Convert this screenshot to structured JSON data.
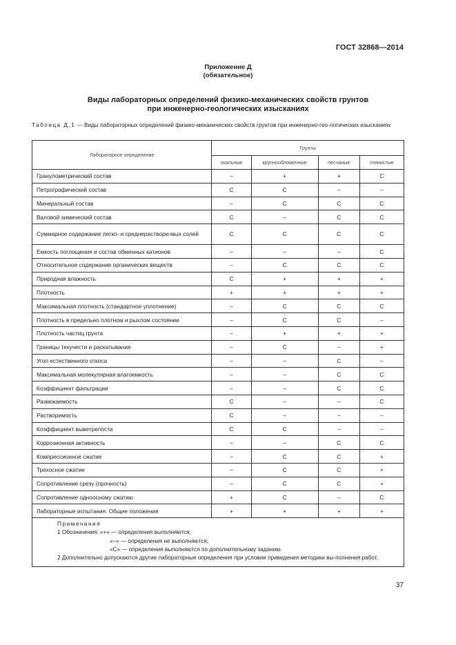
{
  "header": {
    "standard": "ГОСТ 32868—2014"
  },
  "appendix": {
    "title": "Приложение Д",
    "status": "(обязательное)"
  },
  "heading": {
    "line1": "Виды лабораторных определений физико-механических свойств грунтов",
    "line2": "при инженерно-геологических изысканиях"
  },
  "caption": {
    "label": "Таблица Д.1",
    "text": " — Виды лабораторных определений физико-механических свойств грунтов при инженерно-гео-логических изысканиях"
  },
  "table": {
    "col_label": "Лабораторное определение",
    "group_label": "Грунты",
    "columns": [
      "скальные",
      "крупнообломочные",
      "песчаные",
      "глинистые"
    ],
    "rows": [
      {
        "name": "Гранулометрический состав",
        "v": [
          "–",
          "+",
          "+",
          "С"
        ]
      },
      {
        "name": "Петрографический состав",
        "v": [
          "С",
          "С",
          "–",
          "–"
        ]
      },
      {
        "name": "Минеральный состав",
        "v": [
          "–",
          "С",
          "С",
          "С"
        ]
      },
      {
        "name": "Валовой химический состав",
        "v": [
          "С",
          "–",
          "С",
          "С"
        ]
      },
      {
        "name": "Суммарное содержание легко- и среднераствори-мых солей",
        "v": [
          "С",
          "С",
          "С",
          "С"
        ]
      },
      {
        "name": "Емкость поглощения и состав обменных катионов",
        "v": [
          "–",
          "–",
          "–",
          "С"
        ]
      },
      {
        "name": "Относительное содержание органических веществ",
        "v": [
          "–",
          "С",
          "С",
          "С"
        ]
      },
      {
        "name": "Природная влажность",
        "v": [
          "С",
          "+",
          "+",
          "+"
        ]
      },
      {
        "name": "Плотность",
        "v": [
          "+",
          "+",
          "+",
          "+"
        ]
      },
      {
        "name": "Максимальная плотность (стандартное уплотнение)",
        "v": [
          "–",
          "С",
          "С",
          "С"
        ]
      },
      {
        "name": "Плотность в предельно плотном и рыхлом состоянии",
        "v": [
          "–",
          "С",
          "С",
          "–"
        ]
      },
      {
        "name": "Плотность частиц грунта",
        "v": [
          "–",
          "+",
          "+",
          "+"
        ]
      },
      {
        "name": "Границы текучести и раскатывания",
        "v": [
          "–",
          "С",
          "–",
          "+"
        ]
      },
      {
        "name": "Угол естественного откоса",
        "v": [
          "–",
          "–",
          "С",
          "–"
        ]
      },
      {
        "name": "Максимальная молекулярная влагоемкость",
        "v": [
          "–",
          "–",
          "С",
          "С"
        ]
      },
      {
        "name": "Коэффициент фильтрации",
        "v": [
          "–",
          "–",
          "С",
          "С"
        ]
      },
      {
        "name": "Размокаемость",
        "v": [
          "С",
          "–",
          "–",
          "С"
        ]
      },
      {
        "name": "Растворимость",
        "v": [
          "С",
          "–",
          "–",
          "–"
        ]
      },
      {
        "name": "Коэффициент выветрелости",
        "v": [
          "С",
          "С",
          "–",
          "–"
        ]
      },
      {
        "name": "Коррозионная активность",
        "v": [
          "–",
          "–",
          "С",
          "С"
        ]
      },
      {
        "name": "Компрессионное сжатие",
        "v": [
          "–",
          "С",
          "С",
          "+"
        ]
      },
      {
        "name": "Трехосное сжатие",
        "v": [
          "–",
          "С",
          "С",
          "+"
        ]
      },
      {
        "name": "Сопротивление срезу (прочность)",
        "v": [
          "–",
          "С",
          "С",
          "+"
        ]
      },
      {
        "name": "Сопротивление одноосному сжатию",
        "v": [
          "+",
          "С",
          "–",
          "С"
        ]
      },
      {
        "name": "Лабораторные испытания. Общие положения",
        "v": [
          "+",
          "+",
          "+",
          "+"
        ]
      }
    ],
    "notes": {
      "title": "Примечания",
      "n1a": "1 Обозначения: «+» — определения выполняются;",
      "n1b": "«–» — определения не выполняются;",
      "n1c": "«С» — определения выполняются по дополнительному заданию.",
      "n2": "2 Дополнительно допускаются другие лабораторные определения при условии приведения методики вы-полнения работ."
    }
  },
  "page_number": "37"
}
